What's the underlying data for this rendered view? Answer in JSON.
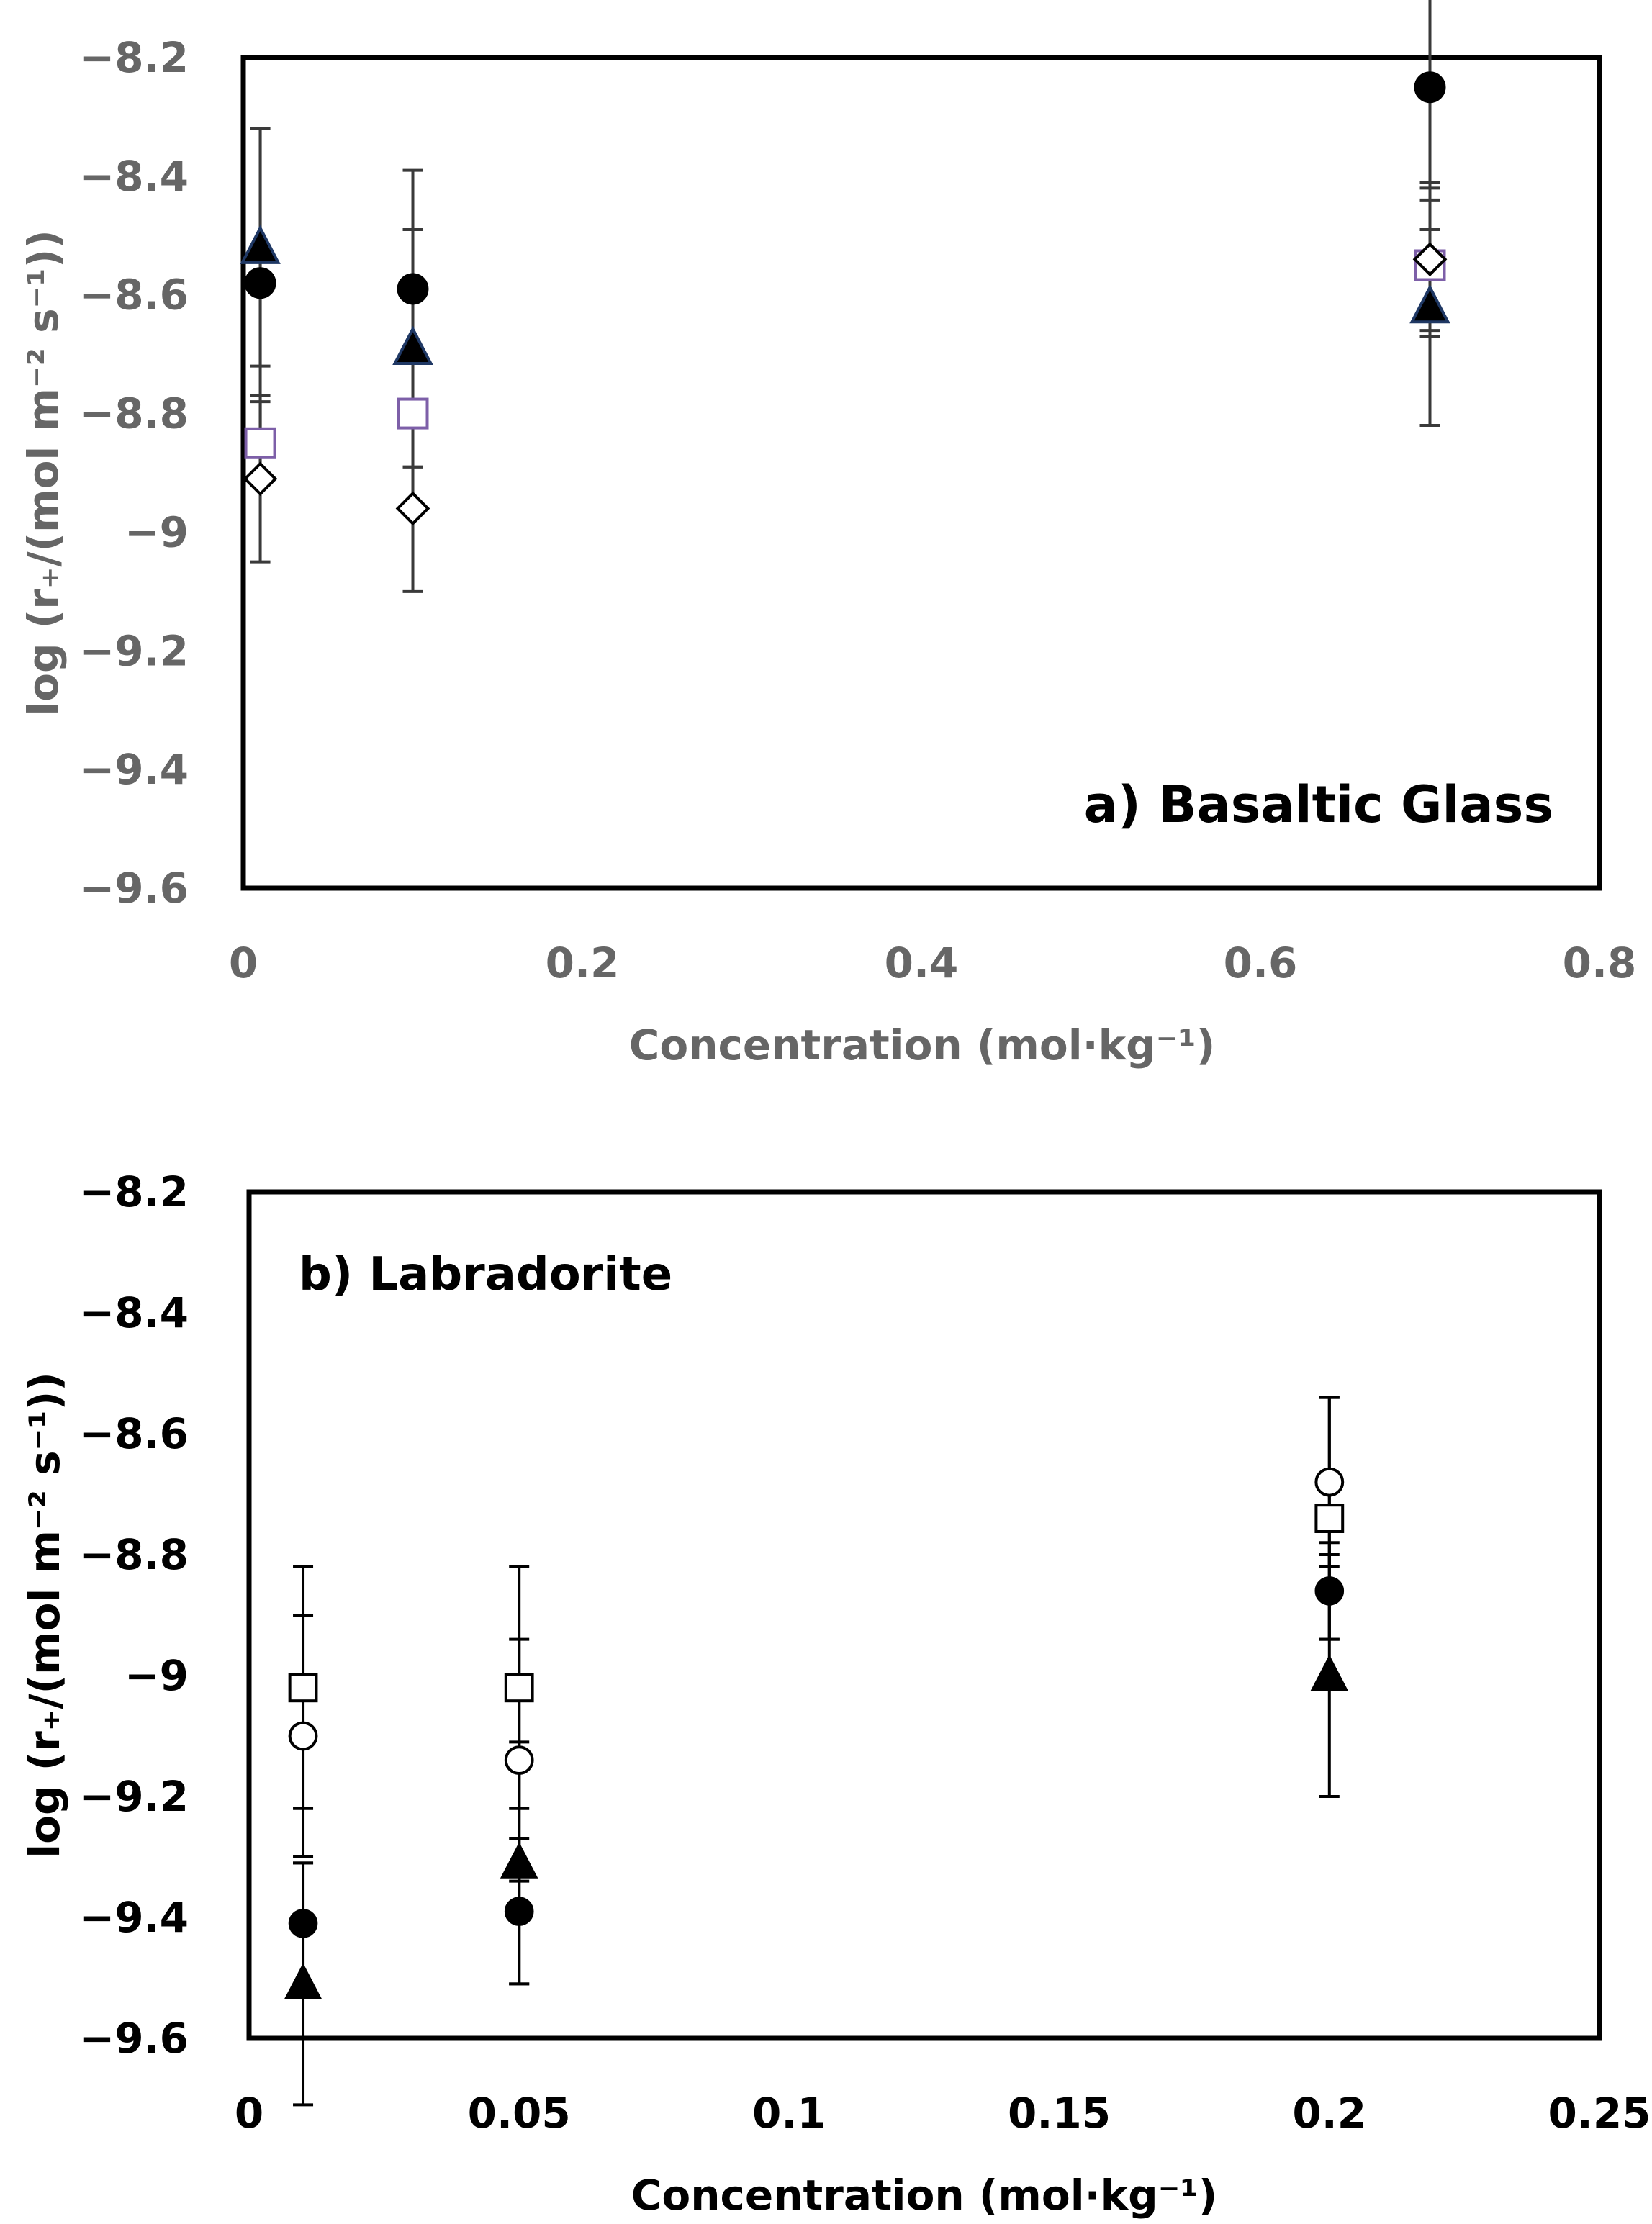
{
  "chart_data": [
    {
      "type": "scatter",
      "title": "a) Basaltic Glass",
      "xlabel": "Concentration (mol·kg⁻¹)",
      "ylabel": "log (r₊/(mol m⁻² s⁻¹))",
      "xlim": [
        0,
        0.8
      ],
      "ylim": [
        -9.6,
        -8.2
      ],
      "x_ticks": [
        0,
        0.2,
        0.4,
        0.6,
        0.8
      ],
      "x_tick_labels": [
        "0",
        "0.2",
        "0.4",
        "0.6",
        "0.8"
      ],
      "y_ticks": [
        -8.2,
        -8.4,
        -8.6,
        -8.8,
        -9,
        -9.2,
        -9.4,
        -9.6
      ],
      "y_tick_labels": [
        "−8.2",
        "−8.4",
        "−8.6",
        "−8.8",
        "−9",
        "−9.2",
        "−9.4",
        "−9.6"
      ],
      "grid": false,
      "label_color": "#666666",
      "series": [
        {
          "name": "filled circle",
          "marker": "circle-filled",
          "color": "#000000",
          "points": [
            {
              "x": 0.01,
              "y": -8.58,
              "err": 0.26
            },
            {
              "x": 0.1,
              "y": -8.59,
              "err": 0.2
            },
            {
              "x": 0.7,
              "y": -8.25,
              "err": 0.24
            }
          ]
        },
        {
          "name": "filled triangle",
          "marker": "triangle-filled",
          "color": "#000000",
          "stroke": "#1f3864",
          "points": [
            {
              "x": 0.01,
              "y": -8.52,
              "err": 0.2
            },
            {
              "x": 0.1,
              "y": -8.69,
              "err": 0.2
            },
            {
              "x": 0.7,
              "y": -8.62,
              "err": 0.2
            }
          ]
        },
        {
          "name": "open square",
          "marker": "square-open",
          "color": "#7d5fa8",
          "points": [
            {
              "x": 0.01,
              "y": -8.85,
              "err": 0.07
            },
            {
              "x": 0.1,
              "y": -8.8,
              "err": 0.09
            },
            {
              "x": 0.7,
              "y": -8.55,
              "err": 0.11
            }
          ]
        },
        {
          "name": "open diamond",
          "marker": "diamond-open",
          "color": "#000000",
          "points": [
            {
              "x": 0.01,
              "y": -8.91,
              "err": 0.14
            },
            {
              "x": 0.1,
              "y": -8.96,
              "err": 0.14
            },
            {
              "x": 0.7,
              "y": -8.54,
              "err": 0.13
            }
          ]
        }
      ]
    },
    {
      "type": "scatter",
      "title": "b) Labradorite",
      "xlabel": "Concentration (mol·kg⁻¹)",
      "ylabel": "log (r₊/(mol m⁻² s⁻¹))",
      "xlim": [
        0,
        0.25
      ],
      "ylim": [
        -9.6,
        -8.2
      ],
      "x_ticks": [
        0,
        0.05,
        0.1,
        0.15,
        0.2,
        0.25
      ],
      "x_tick_labels": [
        "0",
        "0.05",
        "0.1",
        "0.15",
        "0.2",
        "0.25"
      ],
      "y_ticks": [
        -8.2,
        -8.4,
        -8.6,
        -8.8,
        -9,
        -9.2,
        -9.4,
        -9.6
      ],
      "y_tick_labels": [
        "−8.2",
        "−8.4",
        "−8.6",
        "−8.8",
        "−9",
        "−9.2",
        "−9.4",
        "−9.6"
      ],
      "grid": false,
      "label_color": "#000000",
      "series": [
        {
          "name": "open square",
          "marker": "square-open",
          "color": "#000000",
          "points": [
            {
              "x": 0.01,
              "y": -9.02,
              "err": 0.2
            },
            {
              "x": 0.05,
              "y": -9.02,
              "err": 0.2
            },
            {
              "x": 0.2,
              "y": -8.74,
              "err": 0.2
            }
          ]
        },
        {
          "name": "open circle",
          "marker": "circle-open",
          "color": "#000000",
          "points": [
            {
              "x": 0.01,
              "y": -9.1,
              "err": 0.2
            },
            {
              "x": 0.05,
              "y": -9.14,
              "err": 0.2
            },
            {
              "x": 0.2,
              "y": -8.68,
              "err": 0.14
            }
          ]
        },
        {
          "name": "filled circle",
          "marker": "circle-filled",
          "color": "#000000",
          "points": [
            {
              "x": 0.01,
              "y": -9.41,
              "err": 0.1
            },
            {
              "x": 0.05,
              "y": -9.39,
              "err": 0.12
            },
            {
              "x": 0.2,
              "y": -8.86,
              "err": 0.08
            }
          ]
        },
        {
          "name": "filled triangle",
          "marker": "triangle-filled",
          "color": "#000000",
          "points": [
            {
              "x": 0.01,
              "y": -9.51,
              "err": 0.2
            },
            {
              "x": 0.05,
              "y": -9.31,
              "err": 0.2
            },
            {
              "x": 0.2,
              "y": -9.0,
              "err": 0.2
            }
          ]
        }
      ]
    }
  ]
}
